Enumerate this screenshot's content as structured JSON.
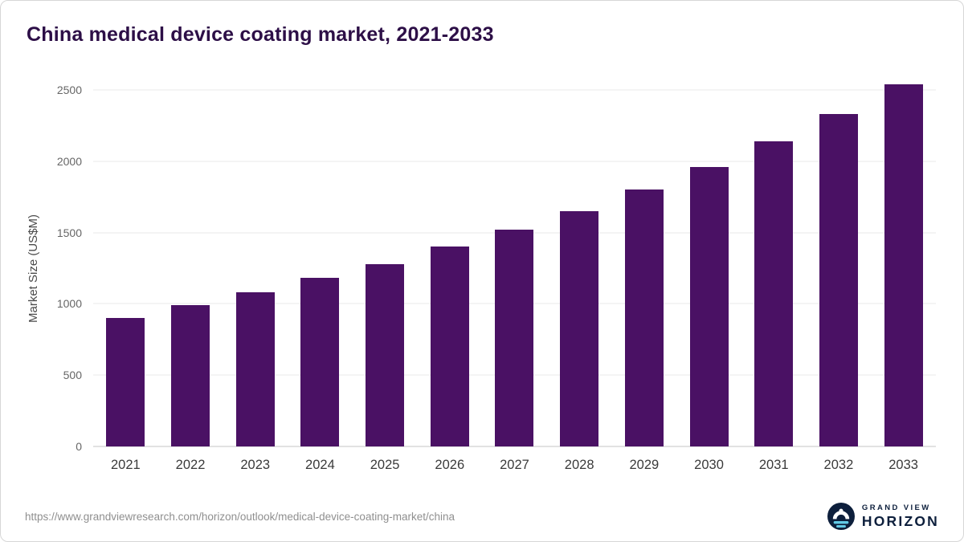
{
  "title": "China medical device coating market, 2021-2033",
  "chart_data": {
    "type": "bar",
    "title": "China medical device coating market, 2021-2033",
    "categories": [
      "2021",
      "2022",
      "2023",
      "2024",
      "2025",
      "2026",
      "2027",
      "2028",
      "2029",
      "2030",
      "2031",
      "2032",
      "2033"
    ],
    "values": [
      900,
      990,
      1080,
      1180,
      1280,
      1400,
      1520,
      1650,
      1800,
      1960,
      2140,
      2330,
      2540
    ],
    "xlabel": "",
    "ylabel": "Market Size (US$M)",
    "ylim": [
      0,
      2500
    ],
    "y_ticks": [
      0,
      500,
      1000,
      1500,
      2000,
      2500
    ],
    "grid": "horizontal",
    "legend_position": "none",
    "bar_color": "#4a1164"
  },
  "footer": {
    "source_url": "https://www.grandviewresearch.com/horizon/outlook/medical-device-coating-market/china",
    "logo": {
      "line1": "GRAND VIEW",
      "line2": "HORIZON"
    }
  },
  "colors": {
    "title_text": "#2d0f47",
    "bar": "#4a1164",
    "gridline": "#e9e9e9",
    "axis_line": "#c4c4c4",
    "logo_navy": "#0d1f3c",
    "logo_cyan": "#62c9e5"
  }
}
